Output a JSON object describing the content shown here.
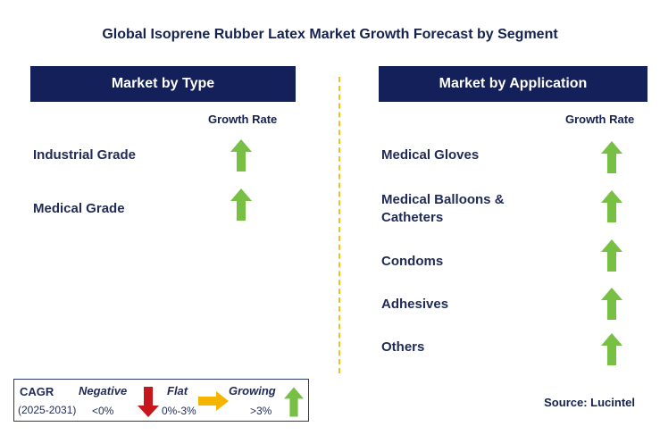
{
  "title": "Global Isoprene Rubber Latex Market Growth Forecast by Segment",
  "left_panel": {
    "header": "Market by Type",
    "column_header": "Growth Rate",
    "items": [
      {
        "label": "Industrial Grade",
        "trend": "growing"
      },
      {
        "label": "Medical Grade",
        "trend": "growing"
      }
    ]
  },
  "right_panel": {
    "header": "Market by Application",
    "column_header": "Growth Rate",
    "items": [
      {
        "label_line1": "Medical Gloves",
        "label_line2": "",
        "trend": "growing"
      },
      {
        "label_line1": "Medical Balloons &",
        "label_line2": "Catheters",
        "trend": "growing"
      },
      {
        "label_line1": "Condoms",
        "label_line2": "",
        "trend": "growing"
      },
      {
        "label_line1": "Adhesives",
        "label_line2": "",
        "trend": "growing"
      },
      {
        "label_line1": "Others",
        "label_line2": "",
        "trend": "growing"
      }
    ]
  },
  "legend": {
    "cagr_label": "CAGR",
    "period": "(2025-2031)",
    "negative_label": "Negative",
    "negative_range": "<0%",
    "flat_label": "Flat",
    "flat_range": "0%-3%",
    "growing_label": "Growing",
    "growing_range": ">3%"
  },
  "source": "Source: Lucintel",
  "colors": {
    "banner": "#14205a",
    "up_arrow": "#77c043",
    "down_arrow": "#c8161d",
    "flat_arrow": "#f5b400",
    "divider": "#f2c218"
  }
}
